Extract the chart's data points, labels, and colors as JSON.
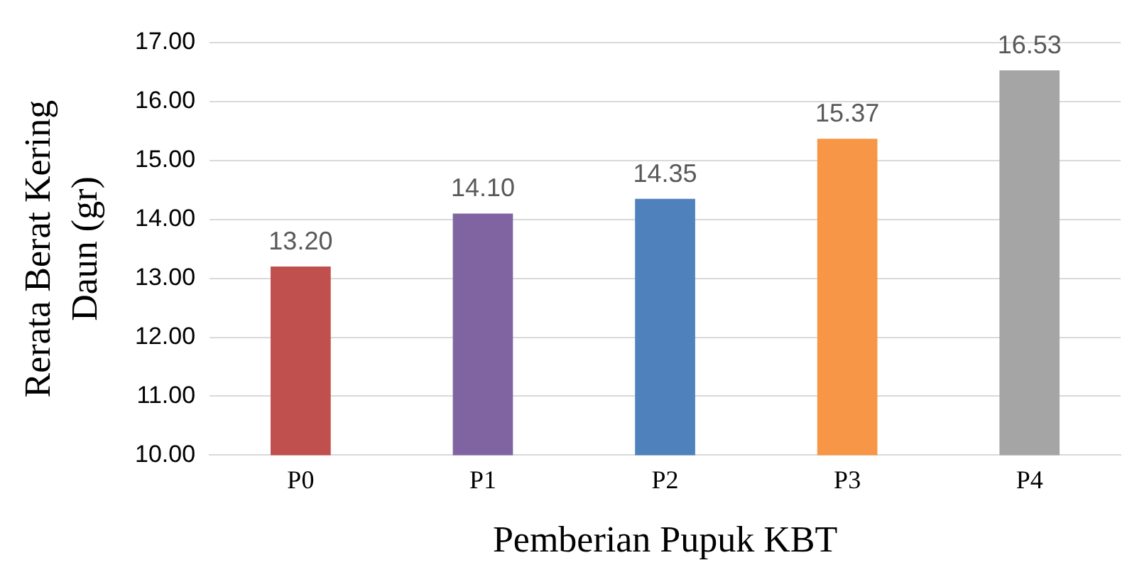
{
  "chart_data": {
    "type": "bar",
    "xlabel": "Pemberian Pupuk KBT",
    "ylabel": "Rerata Berat Kering Daun (gr)",
    "categories": [
      "P0",
      "P1",
      "P2",
      "P3",
      "P4"
    ],
    "values": [
      13.2,
      14.1,
      14.35,
      15.37,
      16.53
    ],
    "colors": [
      "#c0504d",
      "#8064a2",
      "#4f81bd",
      "#f79646",
      "#a5a5a5"
    ],
    "ylim": [
      10,
      17
    ],
    "yticks": [
      {
        "value": 10,
        "label": "10.00"
      },
      {
        "value": 11,
        "label": "11.00"
      },
      {
        "value": 12,
        "label": "12.00"
      },
      {
        "value": 13,
        "label": "13.00"
      },
      {
        "value": 14,
        "label": "14.00"
      },
      {
        "value": 15,
        "label": "15.00"
      },
      {
        "value": 16,
        "label": "16.00"
      },
      {
        "value": 17,
        "label": "17.00"
      }
    ],
    "value_labels": [
      "13.20",
      "14.10",
      "14.35",
      "15.37",
      "16.53"
    ],
    "grid": "y",
    "legend": false
  }
}
